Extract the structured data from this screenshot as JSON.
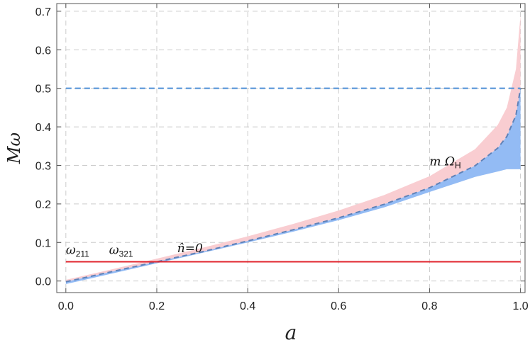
{
  "chart_data": {
    "type": "area",
    "title": "",
    "xlabel": "a",
    "ylabel": "Mω",
    "xlim": [
      -0.02,
      1.01
    ],
    "ylim": [
      -0.03,
      0.72
    ],
    "x_ticks": [
      "0.0",
      "0.2",
      "0.4",
      "0.6",
      "0.8",
      "1.0"
    ],
    "y_ticks": [
      "0.0",
      "0.1",
      "0.2",
      "0.3",
      "0.4",
      "0.5",
      "0.6",
      "0.7"
    ],
    "grid": true,
    "x": [
      0.0,
      0.1,
      0.2,
      0.3,
      0.4,
      0.5,
      0.6,
      0.7,
      0.8,
      0.9,
      0.95,
      0.97,
      0.99,
      1.0
    ],
    "series": [
      {
        "name": "",
        "kind": "band",
        "color": "#f9cdd1",
        "lower": [
          -0.002,
          0.024,
          0.05,
          0.076,
          0.104,
          0.133,
          0.164,
          0.199,
          0.242,
          0.299,
          0.345,
          0.375,
          0.43,
          0.5
        ],
        "upper": [
          0.003,
          0.03,
          0.058,
          0.086,
          0.116,
          0.148,
          0.183,
          0.223,
          0.272,
          0.342,
          0.405,
          0.45,
          0.55,
          0.69
        ]
      },
      {
        "name": "",
        "kind": "band",
        "color": "#93bbf4",
        "lower": [
          -0.008,
          0.019,
          0.046,
          0.073,
          0.1,
          0.128,
          0.158,
          0.191,
          0.231,
          0.27,
          0.284,
          0.29,
          0.29,
          0.29
        ],
        "upper": [
          -0.002,
          0.024,
          0.05,
          0.076,
          0.104,
          0.133,
          0.164,
          0.199,
          0.242,
          0.299,
          0.345,
          0.375,
          0.43,
          0.5
        ]
      },
      {
        "name": "",
        "kind": "line",
        "style": "dashed",
        "color": "#5f82b8",
        "values": [
          -0.002,
          0.024,
          0.05,
          0.076,
          0.104,
          0.133,
          0.164,
          0.199,
          0.242,
          0.299,
          0.345,
          0.375,
          0.43,
          0.5
        ]
      }
    ],
    "reference_lines": [
      {
        "orientation": "horizontal",
        "y": 0.5,
        "color": "#4d8fd6",
        "style": "dashed"
      },
      {
        "orientation": "horizontal",
        "y": 0.05,
        "color": "#e0242d",
        "style": "solid"
      }
    ],
    "annotations": [
      {
        "main": "ω",
        "sub": "211",
        "x": 0.0,
        "y": 0.07
      },
      {
        "main": "ω",
        "sub": "321",
        "x": 0.095,
        "y": 0.07
      },
      {
        "main": "n̂=0",
        "sub": "",
        "x": 0.245,
        "y": 0.075
      },
      {
        "main": "m Ω",
        "sub": "H",
        "x": 0.8,
        "y": 0.3
      }
    ]
  }
}
